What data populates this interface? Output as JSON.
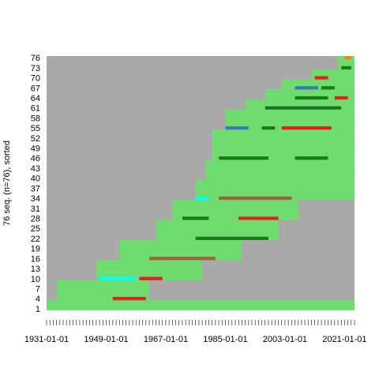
{
  "chart_data": {
    "type": "heatmap",
    "title": "",
    "xlabel": "",
    "ylabel": "76 seq. (n=76), sorted",
    "x_tick_labels": [
      "1931-01-01",
      "1949-01-01",
      "1967-01-01",
      "1985-01-01",
      "2003-01-01",
      "2021-01-01"
    ],
    "x_tick_years": [
      1931,
      1949,
      1967,
      1985,
      2003,
      2021
    ],
    "xlim": [
      1931,
      2024
    ],
    "y_tick_labels": [
      "1",
      "4",
      "7",
      "10",
      "13",
      "16",
      "19",
      "22",
      "25",
      "28",
      "31",
      "34",
      "37",
      "40",
      "43",
      "46",
      "49",
      "52",
      "55",
      "58",
      "61",
      "64",
      "67",
      "70",
      "73",
      "76"
    ],
    "ylim": [
      1,
      76
    ],
    "grid": false,
    "legend": "none",
    "colors": {
      "background": "#ffffff",
      "missing": "#a9a9a9",
      "state_light_green": "#6fdc6f",
      "state_dark_green": "#1a7a1a",
      "state_red": "#dd2222",
      "state_brown": "#a0603a",
      "state_cyan": "#00ffff",
      "state_orange": "#ee8800",
      "state_yellow": "#ffff33",
      "state_blue": "#3a78b8"
    },
    "sequences": [
      {
        "seq": 1,
        "segments": [
          {
            "from": 1931,
            "to": 2024,
            "state": "state_light_green"
          }
        ]
      },
      {
        "seq": 4,
        "segments": [
          {
            "from": 1934,
            "to": 1962,
            "state": "state_light_green"
          },
          {
            "from": 1951,
            "to": 1961,
            "state": "state_red"
          }
        ]
      },
      {
        "seq": 10,
        "segments": [
          {
            "from": 1946,
            "to": 1978,
            "state": "state_light_green"
          },
          {
            "from": 1947,
            "to": 1958,
            "state": "state_cyan"
          },
          {
            "from": 1959,
            "to": 1966,
            "state": "state_red"
          }
        ]
      },
      {
        "seq": 16,
        "segments": [
          {
            "from": 1953,
            "to": 1990,
            "state": "state_light_green"
          },
          {
            "from": 1962,
            "to": 1982,
            "state": "state_brown"
          }
        ]
      },
      {
        "seq": 22,
        "segments": [
          {
            "from": 1964,
            "to": 2001,
            "state": "state_light_green"
          },
          {
            "from": 1976,
            "to": 1998,
            "state": "state_dark_green"
          }
        ]
      },
      {
        "seq": 28,
        "segments": [
          {
            "from": 1969,
            "to": 2007,
            "state": "state_light_green"
          },
          {
            "from": 1972,
            "to": 1980,
            "state": "state_dark_green"
          },
          {
            "from": 1989,
            "to": 2001,
            "state": "state_red"
          }
        ]
      },
      {
        "seq": 34,
        "segments": [
          {
            "from": 1976,
            "to": 2024,
            "state": "state_light_green"
          },
          {
            "from": 1976,
            "to": 1980,
            "state": "state_cyan"
          },
          {
            "from": 1983,
            "to": 2005,
            "state": "state_brown"
          }
        ]
      },
      {
        "seq": 40,
        "segments": [
          {
            "from": 1979,
            "to": 2024,
            "state": "state_light_green"
          }
        ]
      },
      {
        "seq": 46,
        "segments": [
          {
            "from": 1981,
            "to": 2024,
            "state": "state_light_green"
          },
          {
            "from": 1983,
            "to": 1998,
            "state": "state_dark_green"
          },
          {
            "from": 2006,
            "to": 2016,
            "state": "state_dark_green"
          }
        ]
      },
      {
        "seq": 52,
        "segments": [
          {
            "from": 1981,
            "to": 2024,
            "state": "state_light_green"
          }
        ]
      },
      {
        "seq": 55,
        "segments": [
          {
            "from": 1985,
            "to": 2024,
            "state": "state_light_green"
          },
          {
            "from": 1985,
            "to": 1992,
            "state": "state_blue"
          },
          {
            "from": 1996,
            "to": 2000,
            "state": "state_dark_green"
          },
          {
            "from": 2002,
            "to": 2017,
            "state": "state_red"
          }
        ]
      },
      {
        "seq": 61,
        "segments": [
          {
            "from": 1991,
            "to": 2024,
            "state": "state_light_green"
          },
          {
            "from": 1997,
            "to": 2020,
            "state": "state_dark_green"
          }
        ]
      },
      {
        "seq": 64,
        "segments": [
          {
            "from": 1997,
            "to": 2024,
            "state": "state_light_green"
          },
          {
            "from": 2006,
            "to": 2016,
            "state": "state_dark_green"
          },
          {
            "from": 2018,
            "to": 2022,
            "state": "state_red"
          }
        ]
      },
      {
        "seq": 67,
        "segments": [
          {
            "from": 2002,
            "to": 2024,
            "state": "state_light_green"
          },
          {
            "from": 2006,
            "to": 2013,
            "state": "state_blue"
          },
          {
            "from": 2014,
            "to": 2018,
            "state": "state_dark_green"
          }
        ]
      },
      {
        "seq": 70,
        "segments": [
          {
            "from": 2011,
            "to": 2024,
            "state": "state_light_green"
          },
          {
            "from": 2012,
            "to": 2016,
            "state": "state_red"
          }
        ]
      },
      {
        "seq": 73,
        "segments": [
          {
            "from": 2019,
            "to": 2024,
            "state": "state_light_green"
          },
          {
            "from": 2020,
            "to": 2023,
            "state": "state_dark_green"
          }
        ]
      },
      {
        "seq": 76,
        "segments": [
          {
            "from": 2019,
            "to": 2024,
            "state": "state_light_green"
          },
          {
            "from": 2021,
            "to": 2023,
            "state": "state_orange"
          }
        ]
      }
    ]
  }
}
